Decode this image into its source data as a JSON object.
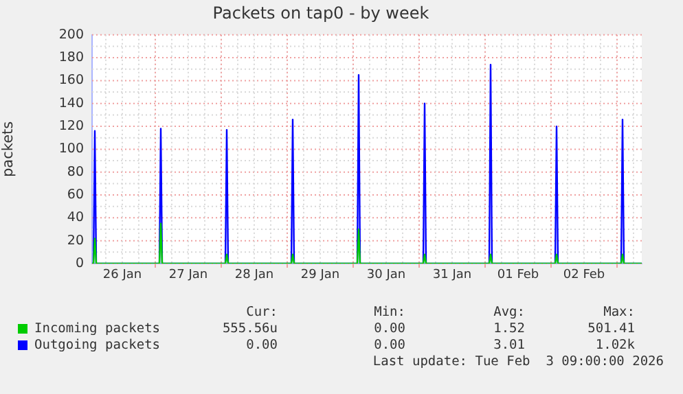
{
  "chart_data": {
    "type": "line",
    "title": "Packets on tap0 - by week",
    "ylabel": "packets",
    "x": [
      "2026-01-26T01:00",
      "2026-01-26T01:30",
      "2026-01-26T02:00",
      "2026-01-26T02:30",
      "2026-01-27T01:30",
      "2026-01-27T02:00",
      "2026-01-27T02:30",
      "2026-01-28T01:30",
      "2026-01-28T02:00",
      "2026-01-28T02:30",
      "2026-01-29T01:30",
      "2026-01-29T02:00",
      "2026-01-29T02:30",
      "2026-01-30T01:30",
      "2026-01-30T02:00",
      "2026-01-30T02:30",
      "2026-01-31T01:30",
      "2026-01-31T02:00",
      "2026-01-31T02:30",
      "2026-02-01T01:30",
      "2026-02-01T02:00",
      "2026-02-01T02:30",
      "2026-02-02T01:30",
      "2026-02-02T02:00",
      "2026-02-02T02:30",
      "2026-02-03T01:30",
      "2026-02-03T02:00",
      "2026-02-03T02:30",
      "2026-02-03T09:00"
    ],
    "series": [
      {
        "name": "Incoming packets",
        "color": "#00cc00",
        "values": [
          0,
          0,
          22,
          0,
          0,
          35,
          0,
          0,
          8,
          0,
          0,
          8,
          0,
          0,
          30,
          0,
          0,
          8,
          0,
          0,
          8,
          0,
          0,
          8,
          0,
          0,
          8,
          0,
          0
        ]
      },
      {
        "name": "Outgoing packets",
        "color": "#0000ff",
        "values": [
          0,
          0,
          116,
          0,
          0,
          118,
          0,
          0,
          117,
          0,
          0,
          126,
          0,
          0,
          165,
          0,
          0,
          140,
          0,
          0,
          174,
          0,
          0,
          120,
          0,
          0,
          126,
          0,
          0
        ]
      }
    ],
    "xlim": [
      "2026-01-26T01:00",
      "2026-02-03T09:00"
    ],
    "xticks": [
      {
        "value": "2026-01-26T12:00",
        "label": "26 Jan"
      },
      {
        "value": "2026-01-27T00:00",
        "label": null
      },
      {
        "value": "2026-01-27T12:00",
        "label": "27 Jan"
      },
      {
        "value": "2026-01-28T00:00",
        "label": null
      },
      {
        "value": "2026-01-28T12:00",
        "label": "28 Jan"
      },
      {
        "value": "2026-01-29T00:00",
        "label": null
      },
      {
        "value": "2026-01-29T12:00",
        "label": "29 Jan"
      },
      {
        "value": "2026-01-30T00:00",
        "label": null
      },
      {
        "value": "2026-01-30T12:00",
        "label": "30 Jan"
      },
      {
        "value": "2026-01-31T00:00",
        "label": null
      },
      {
        "value": "2026-01-31T12:00",
        "label": "31 Jan"
      },
      {
        "value": "2026-02-01T00:00",
        "label": null
      },
      {
        "value": "2026-02-01T12:00",
        "label": "01 Feb"
      },
      {
        "value": "2026-02-02T00:00",
        "label": null
      },
      {
        "value": "2026-02-02T12:00",
        "label": "02 Feb"
      },
      {
        "value": "2026-02-03T00:00",
        "label": null
      }
    ],
    "ylim": [
      0,
      200
    ],
    "yticks": [
      0,
      20,
      40,
      60,
      80,
      100,
      120,
      140,
      160,
      180,
      200
    ],
    "grid": true,
    "legend": "bottom",
    "marker": "none",
    "line_style": "solid",
    "annotations": [
      "Cur:",
      "Min:",
      "Avg:",
      "Max:",
      "555.56u",
      "0.00",
      "1.52",
      "501.41",
      "0.00",
      "0.00",
      "3.01",
      "1.02k",
      "Last update: Tue Feb  3 09:00:00 2026"
    ]
  }
}
